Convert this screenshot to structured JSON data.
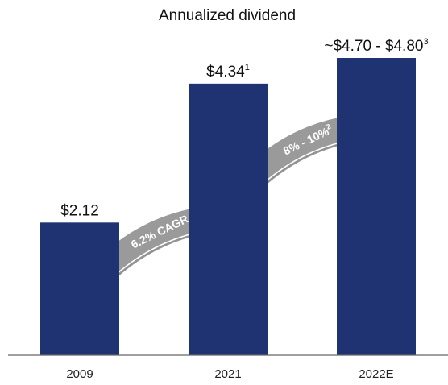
{
  "chart_data": {
    "type": "bar",
    "title": "Annualized dividend",
    "categories": [
      "2009",
      "2021",
      "2022E"
    ],
    "values": [
      2.12,
      4.34,
      4.75
    ],
    "data_labels": [
      {
        "text": "$2.12",
        "sup": ""
      },
      {
        "text": "$4.34",
        "sup": "1"
      },
      {
        "text": "~$4.70 - $4.80",
        "sup": "3"
      }
    ],
    "ylim": [
      0,
      4.75
    ],
    "grid": false,
    "bar_color": "#1f3271",
    "annotations": [
      {
        "text": "6.2% CAGR",
        "sup": "",
        "from": "2009",
        "to": "2021"
      },
      {
        "text": "8% - 10%",
        "sup": "2",
        "from": "2021",
        "to": "2022E"
      }
    ],
    "arrow_color": "#9a9a9a"
  }
}
